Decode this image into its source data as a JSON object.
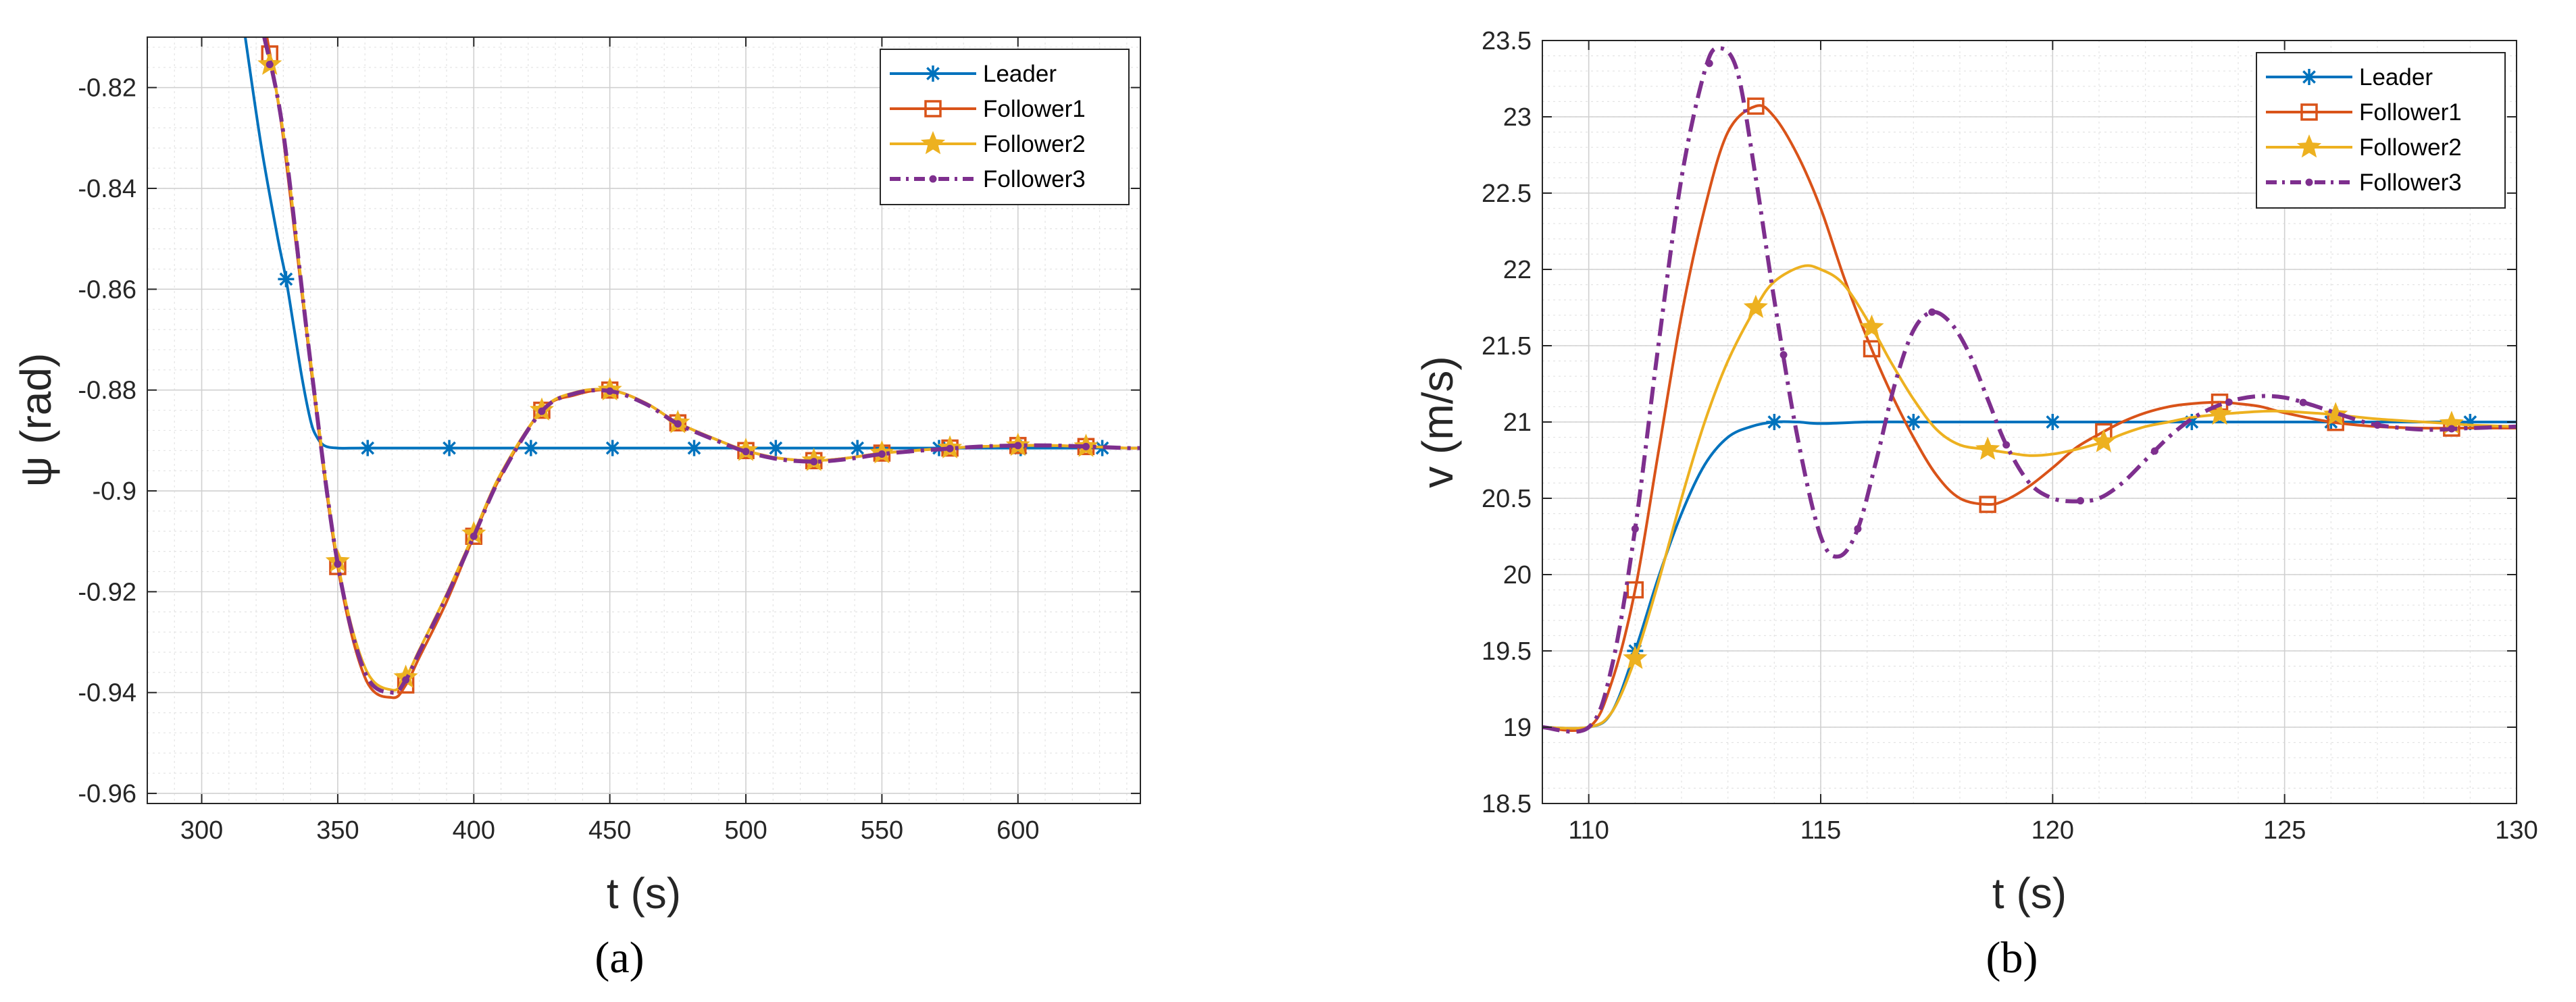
{
  "chart_data": [
    {
      "type": "line",
      "panel": "(a)",
      "xlabel": "t (s)",
      "ylabel": "ψ (rad)",
      "xlim": [
        280,
        645
      ],
      "ylim": [
        -0.962,
        -0.81
      ],
      "xticks": [
        300,
        350,
        400,
        450,
        500,
        550,
        600
      ],
      "yticks": [
        -0.96,
        -0.94,
        -0.92,
        -0.9,
        -0.88,
        -0.86,
        -0.84,
        -0.82
      ],
      "xtick_labels": [
        "300",
        "350",
        "400",
        "450",
        "500",
        "550",
        "600"
      ],
      "ytick_labels": [
        "-0.96",
        "-0.94",
        "-0.92",
        "-0.9",
        "-0.88",
        "-0.86",
        "-0.84",
        "-0.82"
      ],
      "grid": true,
      "legend_position": "top-right",
      "series": [
        {
          "name": "Leader",
          "color": "#0072BD",
          "style": "solid",
          "marker": "asterisk",
          "x": [
            316,
            322,
            328,
            331,
            334,
            337,
            340,
            342,
            345,
            350,
            360,
            390,
            420,
            450,
            480,
            510,
            540,
            570,
            600,
            630,
            645
          ],
          "y": [
            -0.81,
            -0.832,
            -0.85,
            -0.858,
            -0.868,
            -0.878,
            -0.886,
            -0.889,
            -0.891,
            -0.8915,
            -0.8915,
            -0.8915,
            -0.8915,
            -0.8915,
            -0.8915,
            -0.8915,
            -0.8915,
            -0.8915,
            -0.8915,
            -0.8915,
            -0.8915
          ],
          "markers_x": [
            331,
            361,
            391,
            421,
            451,
            481,
            511,
            541,
            571,
            601,
            631
          ]
        },
        {
          "name": "Follower1",
          "color": "#D95319",
          "style": "solid",
          "marker": "square",
          "x": [
            324,
            330,
            340,
            350,
            360,
            370,
            375,
            380,
            390,
            400,
            410,
            425,
            437,
            450,
            463,
            475,
            490,
            500,
            512,
            525,
            537,
            550,
            562,
            575,
            587,
            600,
            612,
            625,
            640,
            645
          ],
          "y": [
            -0.81,
            -0.83,
            -0.875,
            -0.915,
            -0.937,
            -0.941,
            -0.9385,
            -0.933,
            -0.922,
            -0.909,
            -0.897,
            -0.884,
            -0.881,
            -0.88,
            -0.8825,
            -0.8865,
            -0.89,
            -0.892,
            -0.8935,
            -0.894,
            -0.8935,
            -0.8925,
            -0.892,
            -0.8915,
            -0.8912,
            -0.891,
            -0.891,
            -0.8912,
            -0.8915,
            -0.8915
          ],
          "markers_x": [
            325,
            350,
            375,
            400,
            425,
            450,
            475,
            500,
            525,
            550,
            575,
            600,
            625
          ]
        },
        {
          "name": "Follower2",
          "color": "#EDB120",
          "style": "solid",
          "marker": "star",
          "x": [
            323,
            330,
            340,
            350,
            360,
            370,
            375,
            380,
            390,
            400,
            410,
            425,
            437,
            450,
            463,
            475,
            490,
            500,
            512,
            525,
            537,
            550,
            562,
            575,
            587,
            600,
            612,
            625,
            640,
            645
          ],
          "y": [
            -0.81,
            -0.829,
            -0.874,
            -0.914,
            -0.935,
            -0.9395,
            -0.937,
            -0.9315,
            -0.9205,
            -0.9085,
            -0.8965,
            -0.884,
            -0.8805,
            -0.88,
            -0.8825,
            -0.8865,
            -0.89,
            -0.892,
            -0.8935,
            -0.894,
            -0.8935,
            -0.8925,
            -0.892,
            -0.8915,
            -0.8912,
            -0.891,
            -0.891,
            -0.8912,
            -0.8915,
            -0.8915
          ],
          "markers_x": [
            325,
            350,
            375,
            400,
            425,
            450,
            475,
            500,
            525,
            550,
            575,
            600,
            625
          ]
        },
        {
          "name": "Follower3",
          "color": "#7E2F8E",
          "style": "dashdot",
          "marker": "dot",
          "x": [
            323,
            330,
            340,
            350,
            360,
            370,
            375,
            380,
            390,
            400,
            410,
            425,
            437,
            450,
            463,
            475,
            490,
            500,
            512,
            525,
            537,
            550,
            562,
            575,
            587,
            600,
            612,
            625,
            640,
            645
          ],
          "y": [
            -0.81,
            -0.829,
            -0.8745,
            -0.9145,
            -0.936,
            -0.94,
            -0.9375,
            -0.932,
            -0.921,
            -0.909,
            -0.897,
            -0.8842,
            -0.8807,
            -0.8802,
            -0.8827,
            -0.8867,
            -0.8902,
            -0.8922,
            -0.8937,
            -0.8942,
            -0.8937,
            -0.8927,
            -0.8921,
            -0.8916,
            -0.8912,
            -0.891,
            -0.891,
            -0.8912,
            -0.8915,
            -0.8915
          ],
          "markers_x": [
            325,
            350,
            375,
            400,
            425,
            450,
            475,
            500,
            525,
            550,
            575,
            600,
            625
          ]
        }
      ]
    },
    {
      "type": "line",
      "panel": "(b)",
      "xlabel": "t (s)",
      "ylabel": "v (m/s)",
      "xlim": [
        109,
        130
      ],
      "ylim": [
        18.5,
        23.5
      ],
      "xticks": [
        110,
        115,
        120,
        125,
        130
      ],
      "yticks": [
        18.5,
        19,
        19.5,
        20,
        20.5,
        21,
        21.5,
        22,
        22.5,
        23,
        23.5
      ],
      "xtick_labels": [
        "110",
        "115",
        "120",
        "125",
        "130"
      ],
      "ytick_labels": [
        "18.5",
        "19",
        "19.5",
        "20",
        "20.5",
        "21",
        "21.5",
        "22",
        "22.5",
        "23",
        "23.5"
      ],
      "grid": true,
      "legend_position": "top-right",
      "series": [
        {
          "name": "Leader",
          "color": "#0072BD",
          "style": "solid",
          "marker": "asterisk",
          "x": [
            109,
            110,
            110.5,
            111,
            111.5,
            112,
            112.5,
            113,
            113.5,
            114,
            114.5,
            115,
            116,
            117,
            118,
            120,
            122,
            124,
            126,
            128,
            130
          ],
          "y": [
            19,
            19,
            19.1,
            19.5,
            19.98,
            20.4,
            20.72,
            20.9,
            20.97,
            21,
            21,
            20.99,
            21,
            21,
            21,
            21,
            21,
            21,
            21,
            21,
            21
          ],
          "markers_x": [
            111,
            114,
            117,
            120,
            123,
            126,
            129
          ]
        },
        {
          "name": "Follower1",
          "color": "#D95319",
          "style": "solid",
          "marker": "square",
          "x": [
            109,
            110,
            110.5,
            111,
            111.5,
            112,
            112.5,
            113,
            113.6,
            114,
            114.5,
            115,
            115.5,
            116,
            116.5,
            117,
            117.5,
            118,
            118.6,
            119,
            119.5,
            120,
            120.5,
            121,
            121.5,
            122,
            122.5,
            123,
            123.6,
            124,
            124.5,
            125,
            126,
            127,
            128,
            128.6,
            129,
            130
          ],
          "y": [
            19,
            19,
            19.3,
            19.9,
            20.8,
            21.7,
            22.4,
            22.9,
            23.07,
            23.0,
            22.75,
            22.4,
            21.95,
            21.55,
            21.2,
            20.9,
            20.65,
            20.5,
            20.46,
            20.49,
            20.58,
            20.7,
            20.83,
            20.92,
            21.0,
            21.06,
            21.1,
            21.12,
            21.13,
            21.12,
            21.1,
            21.06,
            21.0,
            20.97,
            20.96,
            20.96,
            20.96,
            20.96
          ],
          "markers_x": [
            111,
            113.6,
            116.1,
            118.6,
            121.1,
            123.6,
            126.1,
            128.6
          ]
        },
        {
          "name": "Follower2",
          "color": "#EDB120",
          "style": "solid",
          "marker": "star",
          "x": [
            109,
            110,
            110.5,
            111,
            111.5,
            112,
            112.5,
            113,
            113.6,
            114,
            114.6,
            115,
            115.5,
            116.1,
            116.5,
            117,
            117.5,
            118,
            118.6,
            119,
            119.5,
            120,
            120.5,
            121.1,
            121.5,
            122,
            122.5,
            123,
            123.6,
            124,
            124.5,
            125,
            126,
            127,
            128,
            128.6,
            129,
            130
          ],
          "y": [
            19,
            19,
            19.1,
            19.45,
            19.95,
            20.5,
            21.0,
            21.4,
            21.75,
            21.92,
            22.02,
            22.0,
            21.9,
            21.62,
            21.4,
            21.15,
            20.95,
            20.85,
            20.82,
            20.8,
            20.78,
            20.79,
            20.82,
            20.87,
            20.92,
            20.97,
            21.0,
            21.03,
            21.05,
            21.06,
            21.07,
            21.07,
            21.05,
            21.02,
            21.0,
            20.99,
            20.98,
            20.97
          ],
          "markers_x": [
            111,
            113.6,
            116.1,
            118.6,
            121.1,
            123.6,
            126.1,
            128.6
          ]
        },
        {
          "name": "Follower3",
          "color": "#7E2F8E",
          "style": "dashdot",
          "marker": "dot",
          "x": [
            109,
            110,
            110.5,
            111,
            111.5,
            112,
            112.5,
            112.8,
            113.2,
            113.6,
            114,
            114.5,
            115,
            115.4,
            115.8,
            116.2,
            116.6,
            117,
            117.4,
            117.8,
            118.2,
            118.6,
            119,
            119.5,
            120,
            120.5,
            121,
            121.5,
            122,
            122.5,
            123,
            123.5,
            124,
            124.5,
            125,
            125.5,
            126,
            126.5,
            127,
            128,
            129,
            130
          ],
          "y": [
            19,
            19,
            19.4,
            20.3,
            21.5,
            22.6,
            23.3,
            23.45,
            23.3,
            22.6,
            21.8,
            20.9,
            20.25,
            20.12,
            20.3,
            20.75,
            21.25,
            21.6,
            21.72,
            21.65,
            21.45,
            21.15,
            20.85,
            20.6,
            20.5,
            20.48,
            20.5,
            20.6,
            20.75,
            20.9,
            21.02,
            21.1,
            21.15,
            21.17,
            21.16,
            21.12,
            21.07,
            21.02,
            20.98,
            20.95,
            20.96,
            20.97
          ],
          "markers_x": [
            111,
            112.6,
            114.2,
            115.8,
            117.4,
            119,
            120.6,
            122.2,
            123.8,
            125.4,
            127,
            128.6
          ]
        }
      ]
    }
  ],
  "panel_captions": [
    "(a)",
    "(b)"
  ]
}
